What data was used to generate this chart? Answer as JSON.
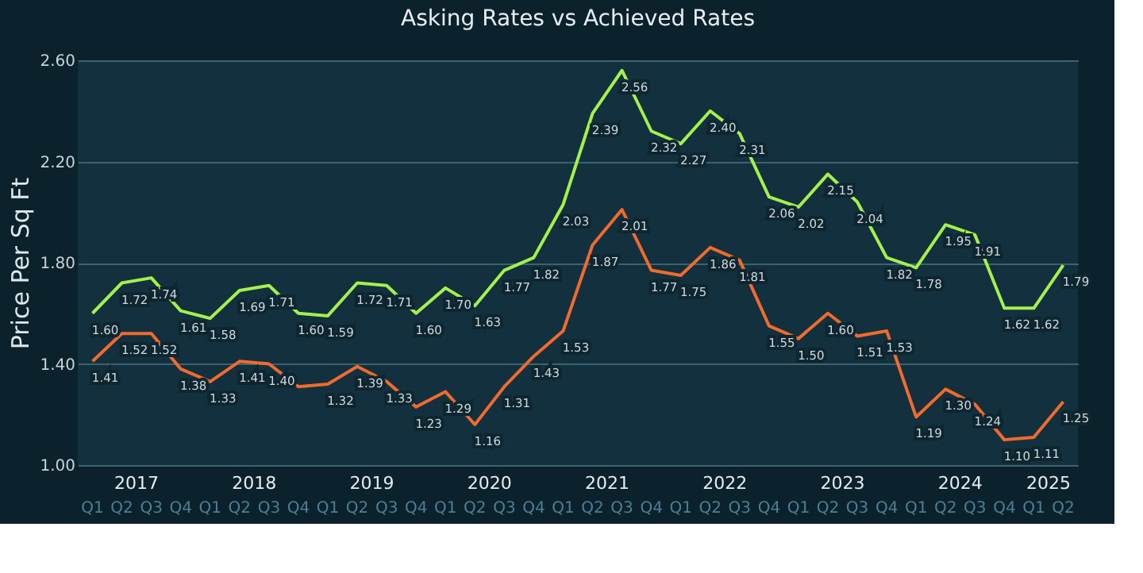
{
  "chart_data": {
    "type": "line",
    "title": "Asking Rates vs Achieved Rates",
    "ylabel": "Price Per Sq Ft",
    "categories": [
      "Q1",
      "Q2",
      "Q3",
      "Q4",
      "Q1",
      "Q2",
      "Q3",
      "Q4",
      "Q1",
      "Q2",
      "Q3",
      "Q4",
      "Q1",
      "Q2",
      "Q3",
      "Q4",
      "Q1",
      "Q2",
      "Q3",
      "Q4",
      "Q1",
      "Q2",
      "Q3",
      "Q4",
      "Q1",
      "Q2",
      "Q3",
      "Q4",
      "Q1",
      "Q2",
      "Q3",
      "Q4",
      "Q1",
      "Q2"
    ],
    "annotations": [
      "2017",
      "2018",
      "2019",
      "2020",
      "2021",
      "2022",
      "2023",
      "2024",
      "2025"
    ],
    "series": [
      {
        "color": "#a6f04c",
        "values": [
          1.6,
          1.72,
          1.74,
          1.61,
          1.58,
          1.69,
          1.71,
          1.6,
          1.59,
          1.72,
          1.71,
          1.6,
          1.7,
          1.63,
          1.77,
          1.82,
          2.03,
          2.39,
          2.56,
          2.32,
          2.27,
          2.4,
          2.31,
          2.06,
          2.02,
          2.15,
          2.04,
          1.82,
          1.78,
          1.95,
          1.91,
          1.62,
          1.62,
          1.79
        ],
        "value_labels": [
          "1.60",
          "1.72",
          "1.74",
          "1.61",
          "1.58",
          "1.69",
          "1.71",
          "1.60",
          "1.59",
          "1.72",
          "1.71",
          "1.60",
          "1.70",
          "1.63",
          "1.77",
          "1.82",
          "2.03",
          "2.39",
          "2.56",
          "2.32",
          "2.27",
          "2.40",
          "2.31",
          "2.06",
          "2.02",
          "2.15",
          "2.04",
          "1.82",
          "1.78",
          "1.95",
          "1.91",
          "1.62",
          "1.62",
          "1.79"
        ]
      },
      {
        "color": "#f26a2c",
        "values": [
          1.41,
          1.52,
          1.52,
          1.38,
          1.33,
          1.41,
          1.4,
          1.31,
          1.32,
          1.39,
          1.33,
          1.23,
          1.29,
          1.16,
          1.31,
          1.43,
          1.53,
          1.87,
          2.01,
          1.77,
          1.75,
          1.86,
          1.81,
          1.55,
          1.5,
          1.6,
          1.51,
          1.53,
          1.19,
          1.3,
          1.24,
          1.1,
          1.11,
          1.25
        ],
        "value_labels": [
          "1.41",
          "1.52",
          "1.52",
          "1.38",
          "1.33",
          "1.41",
          "1.40",
          null,
          "1.32",
          "1.39",
          "1.33",
          "1.23",
          "1.29",
          "1.16",
          "1.31",
          "1.43",
          "1.53",
          "1.87",
          "2.01",
          "1.77",
          "1.75",
          "1.86",
          "1.81",
          "1.55",
          "1.50",
          "1.60",
          "1.51",
          "1.53",
          "1.19",
          "1.30",
          "1.24",
          "1.10",
          "1.11",
          "1.25"
        ]
      }
    ],
    "ylim": [
      1.0,
      2.6
    ],
    "yticks": [
      {
        "value": 1.0,
        "label": "1.00"
      },
      {
        "value": 1.4,
        "label": "1.40"
      },
      {
        "value": 1.8,
        "label": "1.80"
      },
      {
        "value": 2.2,
        "label": "2.20"
      },
      {
        "value": 2.6,
        "label": "2.60"
      }
    ],
    "grid": "y",
    "marker": "none",
    "line_style": "solid"
  }
}
